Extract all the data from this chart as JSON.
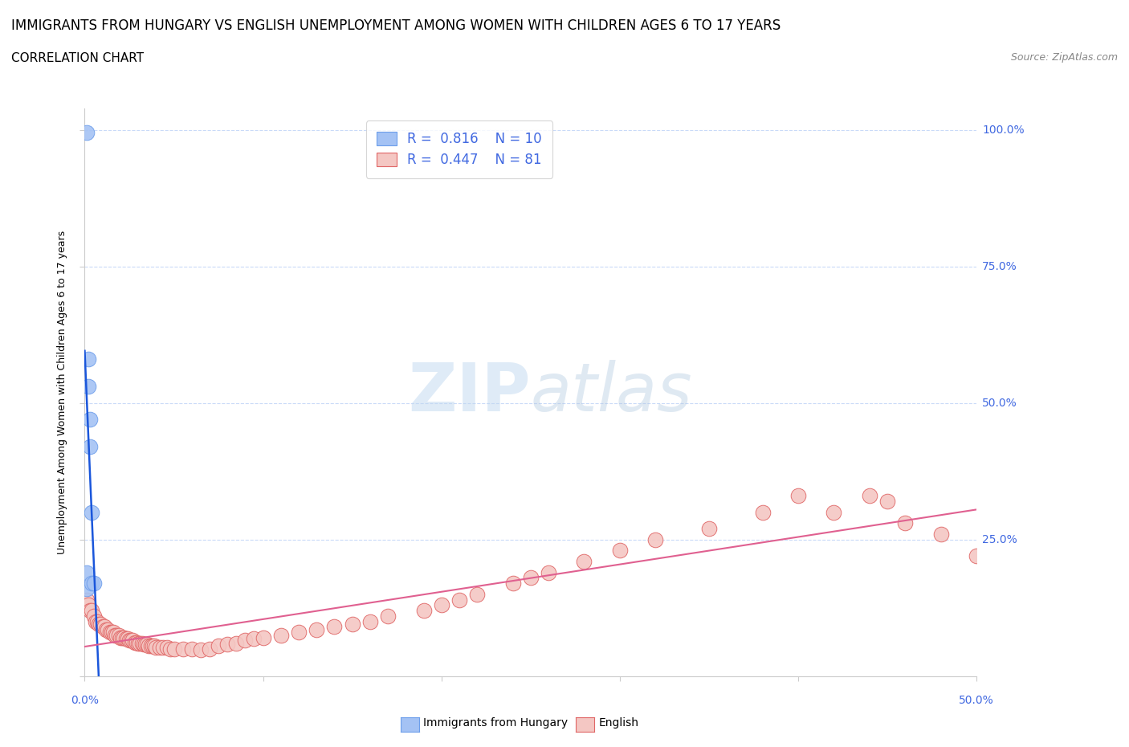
{
  "title_line1": "IMMIGRANTS FROM HUNGARY VS ENGLISH UNEMPLOYMENT AMONG WOMEN WITH CHILDREN AGES 6 TO 17 YEARS",
  "title_line2": "CORRELATION CHART",
  "source_text": "Source: ZipAtlas.com",
  "ylabel": "Unemployment Among Women with Children Ages 6 to 17 years",
  "legend_blue_label": "Immigrants from Hungary",
  "legend_pink_label": "English",
  "legend_blue_R": "R =  0.816",
  "legend_blue_N": "N = 10",
  "legend_pink_R": "R =  0.447",
  "legend_pink_N": "N = 81",
  "blue_color": "#a4c2f4",
  "pink_color": "#f4c7c3",
  "blue_edge_color": "#6d9eeb",
  "pink_edge_color": "#e06666",
  "blue_line_color": "#1a56db",
  "pink_line_color": "#e06090",
  "watermark_zip": "ZIP",
  "watermark_atlas": "atlas",
  "blue_scatter_x": [
    0.001,
    0.001,
    0.001,
    0.002,
    0.002,
    0.003,
    0.003,
    0.004,
    0.004,
    0.005
  ],
  "blue_scatter_y": [
    0.995,
    0.19,
    0.16,
    0.58,
    0.53,
    0.47,
    0.42,
    0.3,
    0.17,
    0.17
  ],
  "pink_scatter_x": [
    0.001,
    0.002,
    0.003,
    0.004,
    0.005,
    0.006,
    0.007,
    0.008,
    0.009,
    0.01,
    0.011,
    0.012,
    0.013,
    0.014,
    0.015,
    0.016,
    0.017,
    0.018,
    0.019,
    0.02,
    0.021,
    0.022,
    0.023,
    0.024,
    0.025,
    0.026,
    0.027,
    0.028,
    0.029,
    0.03,
    0.031,
    0.032,
    0.033,
    0.034,
    0.035,
    0.036,
    0.037,
    0.038,
    0.039,
    0.04,
    0.042,
    0.044,
    0.046,
    0.048,
    0.05,
    0.055,
    0.06,
    0.065,
    0.07,
    0.075,
    0.08,
    0.085,
    0.09,
    0.095,
    0.1,
    0.11,
    0.12,
    0.13,
    0.14,
    0.15,
    0.16,
    0.17,
    0.19,
    0.2,
    0.21,
    0.22,
    0.24,
    0.25,
    0.26,
    0.28,
    0.3,
    0.32,
    0.35,
    0.38,
    0.4,
    0.42,
    0.44,
    0.45,
    0.46,
    0.48,
    0.5
  ],
  "pink_scatter_y": [
    0.14,
    0.13,
    0.12,
    0.12,
    0.11,
    0.1,
    0.1,
    0.095,
    0.095,
    0.09,
    0.09,
    0.085,
    0.085,
    0.08,
    0.08,
    0.08,
    0.075,
    0.075,
    0.075,
    0.07,
    0.07,
    0.07,
    0.068,
    0.068,
    0.065,
    0.065,
    0.065,
    0.062,
    0.062,
    0.06,
    0.06,
    0.06,
    0.058,
    0.058,
    0.058,
    0.055,
    0.055,
    0.055,
    0.055,
    0.053,
    0.053,
    0.052,
    0.052,
    0.05,
    0.05,
    0.05,
    0.05,
    0.048,
    0.05,
    0.055,
    0.058,
    0.06,
    0.065,
    0.068,
    0.07,
    0.075,
    0.08,
    0.085,
    0.09,
    0.095,
    0.1,
    0.11,
    0.12,
    0.13,
    0.14,
    0.15,
    0.17,
    0.18,
    0.19,
    0.21,
    0.23,
    0.25,
    0.27,
    0.3,
    0.33,
    0.3,
    0.33,
    0.32,
    0.28,
    0.26,
    0.22
  ],
  "xmin": 0.0,
  "xmax": 0.5,
  "ymin": 0.0,
  "ymax": 1.04
}
